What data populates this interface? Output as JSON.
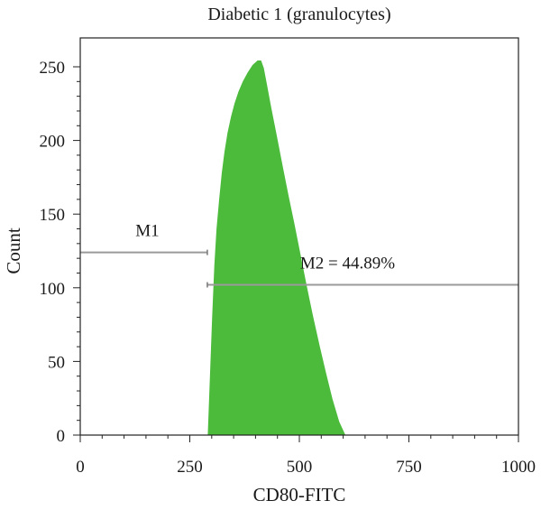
{
  "chart_data": {
    "type": "area",
    "title": "Diabetic 1 (granulocytes)",
    "xlabel": "CD80-FITC",
    "ylabel": "Count",
    "xlim": [
      0,
      1000
    ],
    "ylim": [
      0,
      250
    ],
    "x_ticks": [
      0,
      250,
      500,
      750,
      1000
    ],
    "y_ticks": [
      0,
      50,
      100,
      150,
      200,
      250
    ],
    "grid": false,
    "series": [
      {
        "color": "#4cbb3c",
        "x": [
          292,
          297,
          302,
          307,
          312,
          318,
          324,
          330,
          337,
          345,
          353,
          362,
          372,
          383,
          394,
          405,
          412,
          418,
          425,
          435,
          447,
          460,
          474,
          488,
          502,
          516,
          530,
          545,
          560,
          575,
          590,
          604
        ],
        "y": [
          0,
          40,
          80,
          115,
          140,
          160,
          178,
          192,
          205,
          216,
          225,
          233,
          240,
          246,
          251,
          254,
          254,
          249,
          238,
          222,
          204,
          184,
          163,
          143,
          122,
          101,
          81,
          61,
          42,
          24,
          9,
          0
        ]
      }
    ],
    "markers": [
      {
        "label": "M1",
        "x_start": 0,
        "x_end": 290,
        "y": 124
      },
      {
        "label": "M2 = 44.89%",
        "x_start": 290,
        "x_end": 1000,
        "y": 102
      }
    ]
  }
}
